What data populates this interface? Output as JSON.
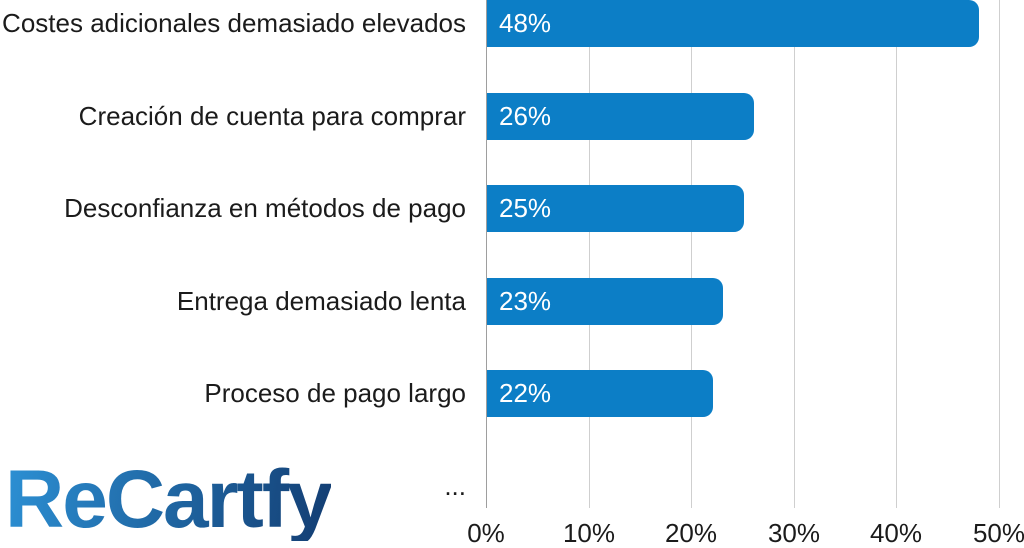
{
  "chart_data": {
    "type": "bar",
    "orientation": "horizontal",
    "title": "",
    "xlabel": "",
    "ylabel": "",
    "categories": [
      "Costes adicionales demasiado elevados",
      "Creación de cuenta para comprar",
      "Desconfianza en métodos de pago",
      "Entrega demasiado lenta",
      "Proceso de pago largo",
      "..."
    ],
    "values": [
      48,
      26,
      25,
      23,
      22,
      null
    ],
    "value_labels": [
      "48%",
      "26%",
      "25%",
      "23%",
      "22%",
      ""
    ],
    "xlim": [
      0,
      52
    ],
    "xticks": [
      0,
      10,
      20,
      30,
      40,
      50
    ],
    "xtick_labels": [
      "0%",
      "10%",
      "20%",
      "30%",
      "40%",
      "50%"
    ],
    "grid": "vertical-only",
    "legend": "none",
    "colors": {
      "bar": "#0C7EC6",
      "bar_value_text": "#ffffff",
      "category_text": "#1b1b1b",
      "tick_text": "#1b1b1b",
      "gridline": "#cfcfcf",
      "axis_line": "#9e9e9e"
    }
  },
  "branding": {
    "logo_text": "ReCartfy",
    "logo_gradient_start": "#2C90D4",
    "logo_gradient_end": "#133D72"
  }
}
